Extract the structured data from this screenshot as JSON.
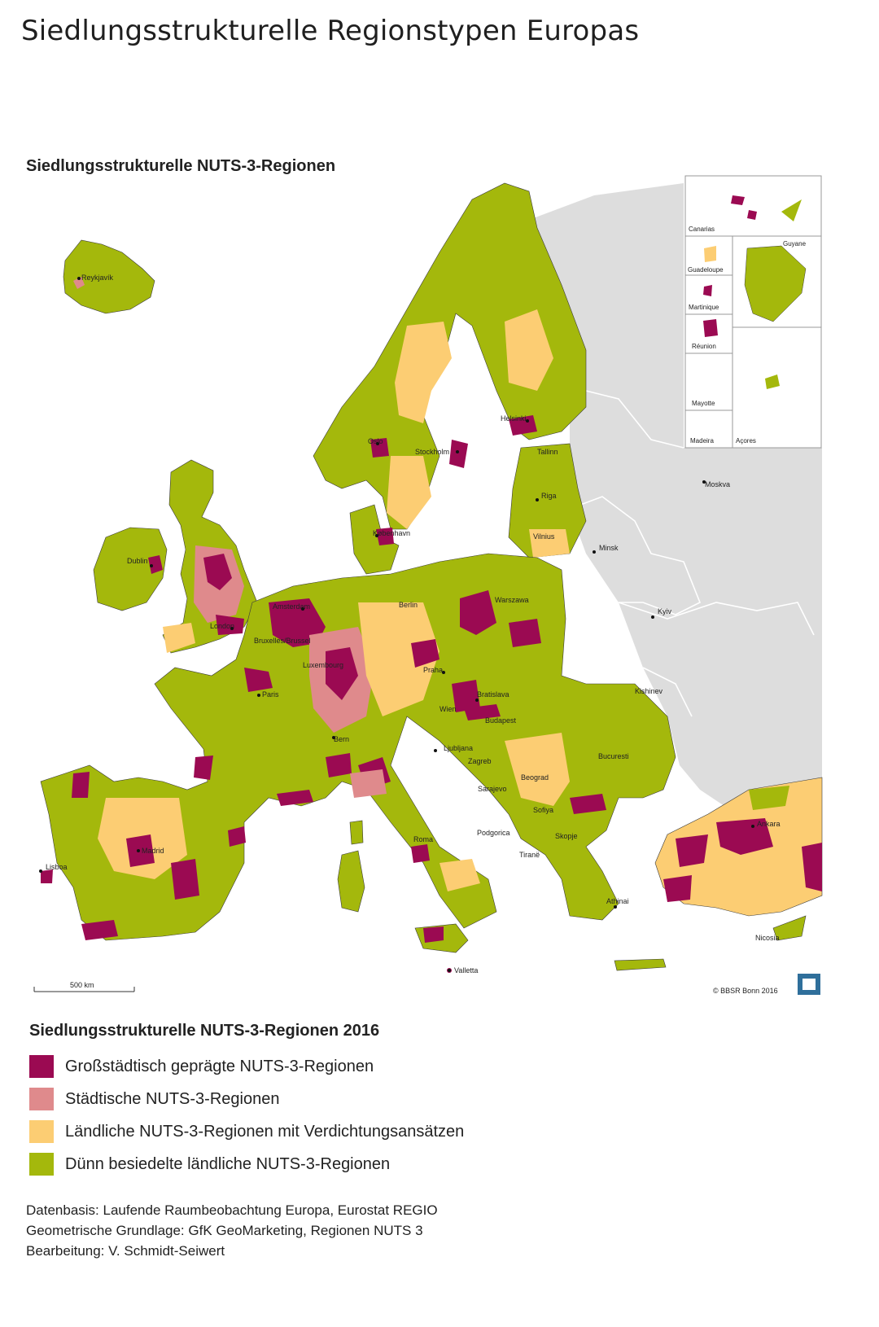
{
  "page_title": "Siedlungsstrukturelle Regionstypen Europas",
  "map": {
    "title": "Siedlungsstrukturelle NUTS-3-Regionen",
    "copyright": "© BBSR Bonn 2016",
    "scale_label": "500 km",
    "colors": {
      "grossstaedtisch": "#9b0a52",
      "staedtisch": "#df8a8c",
      "laendlich_verdichtung": "#fccd73",
      "duenn_besiedelt": "#a4b80c",
      "non_eu_land": "#dddddd",
      "sea": "#ffffff",
      "border": "#3a3a3a"
    },
    "cities": {
      "reykjavik": "Reykjavík",
      "oslo": "Oslo",
      "stockholm": "Stockholm",
      "helsinki": "Helsinki",
      "tallinn": "Tallinn",
      "riga": "Riga",
      "vilnius": "Vilnius",
      "kobenhavn": "København",
      "dublin": "Dublin",
      "london": "London",
      "amsterdam": "Amsterdam",
      "bruxelles": "Bruxelles/Brussel",
      "luxembourg": "Luxembourg",
      "paris": "Paris",
      "berlin": "Berlin",
      "warszawa": "Warszawa",
      "praha": "Praha",
      "wien": "Wien",
      "bratislava": "Bratislava",
      "budapest": "Budapest",
      "bern": "Bern",
      "ljubljana": "Ljubljana",
      "zagreb": "Zagreb",
      "sarajevo": "Sarajevo",
      "beograd": "Beograd",
      "bucuresti": "Bucuresti",
      "sofiya": "Sofiya",
      "podgorica": "Podgorica",
      "skopje": "Skopje",
      "tirana": "Tiranë",
      "roma": "Roma",
      "madrid": "Madrid",
      "lisboa": "Lisboa",
      "athinai": "Athinai",
      "ankara": "Ankara",
      "nicosia": "Nicosia",
      "valletta": "Valletta",
      "minsk": "Minsk",
      "moskva": "Moskva",
      "kyiv": "Kyiv",
      "kishinev": "Kishinev"
    },
    "insets": {
      "canarias": "Canarias",
      "guyane": "Guyane",
      "guadeloupe": "Guadeloupe",
      "martinique": "Martinique",
      "reunion": "Réunion",
      "mayotte": "Mayotte",
      "madeira": "Madeira",
      "acores": "Açores"
    }
  },
  "legend": {
    "title": "Siedlungsstrukturelle NUTS-3-Regionen 2016",
    "items": [
      {
        "label": "Großstädtisch geprägte NUTS-3-Regionen",
        "color": "#9b0a52"
      },
      {
        "label": "Städtische NUTS-3-Regionen",
        "color": "#df8a8c"
      },
      {
        "label": "Ländliche NUTS-3-Regionen mit Verdichtungsansätzen",
        "color": "#fccd73"
      },
      {
        "label": "Dünn besiedelte ländliche NUTS-3-Regionen",
        "color": "#a4b80c"
      }
    ]
  },
  "sources": {
    "line1": "Datenbasis: Laufende Raumbeobachtung Europa, Eurostat REGIO",
    "line2": "Geometrische Grundlage: GfK GeoMarketing, Regionen NUTS 3",
    "line3": "Bearbeitung: V. Schmidt-Seiwert"
  }
}
